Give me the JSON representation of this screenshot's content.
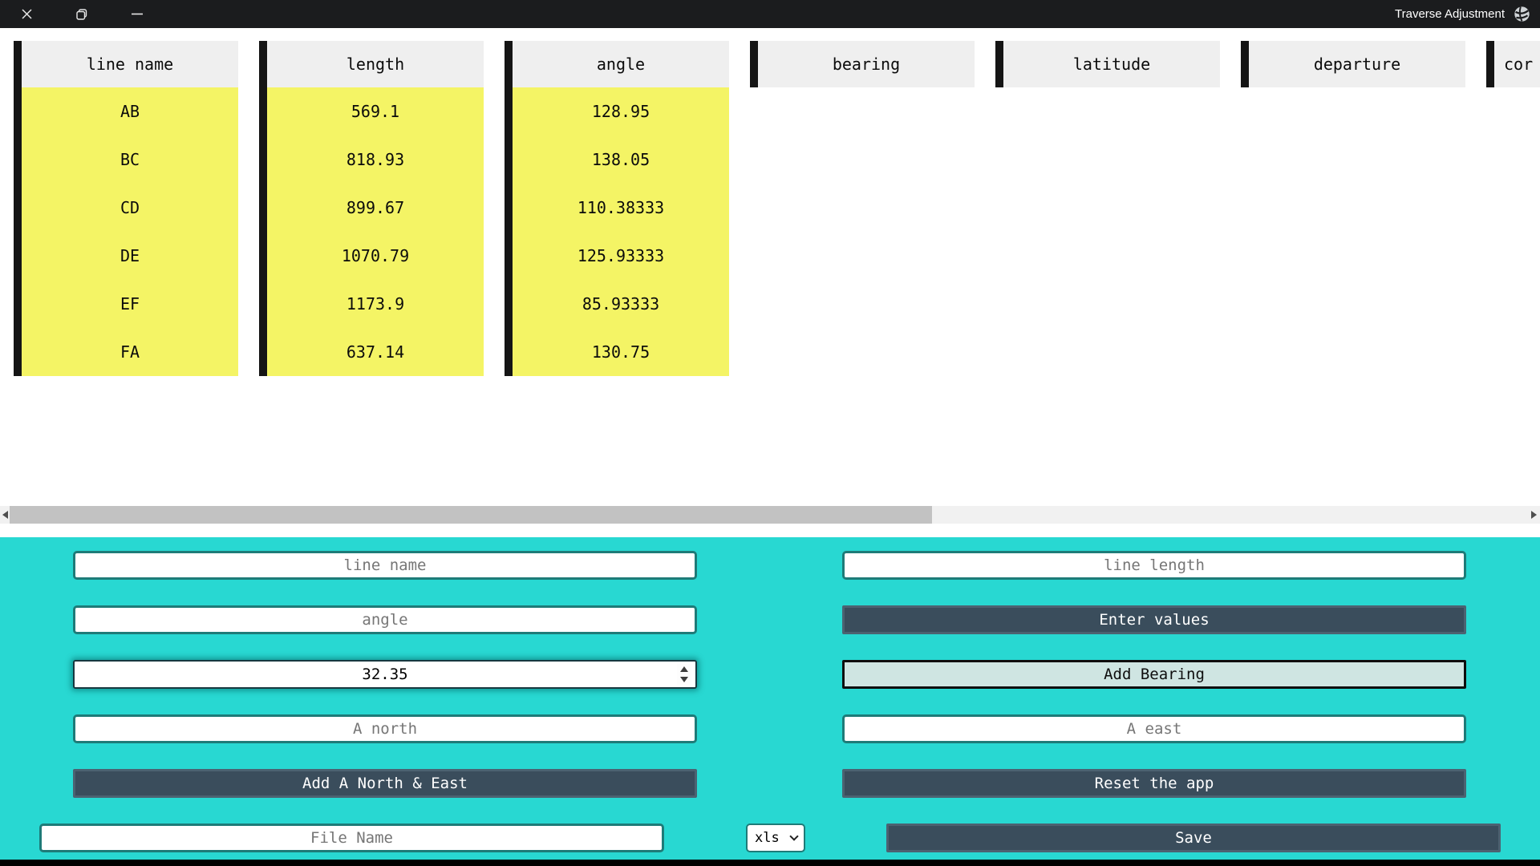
{
  "colors": {
    "titlebar": "#1b1c1e",
    "highlight_yellow": "#f4f465",
    "panel_cyan": "#28d8d2",
    "button_dark": "#3a4d5c"
  },
  "titlebar": {
    "title": "Traverse Adjustment"
  },
  "table": {
    "columns": [
      {
        "header": "line name",
        "values": [
          "AB",
          "BC",
          "CD",
          "DE",
          "EF",
          "FA"
        ]
      },
      {
        "header": "length",
        "values": [
          "569.1",
          "818.93",
          "899.67",
          "1070.79",
          "1173.9",
          "637.14"
        ]
      },
      {
        "header": "angle",
        "values": [
          "128.95",
          "138.05",
          "110.38333",
          "125.93333",
          "85.93333",
          "130.75"
        ]
      },
      {
        "header": "bearing",
        "values": []
      },
      {
        "header": "latitude",
        "values": []
      },
      {
        "header": "departure",
        "values": []
      },
      {
        "header": "cor",
        "values": [],
        "clipped": true
      }
    ]
  },
  "panel": {
    "inputs": {
      "line_name_placeholder": "line name",
      "line_length_placeholder": "line length",
      "angle_placeholder": "angle",
      "a_north_placeholder": "A north",
      "a_east_placeholder": "A east",
      "file_name_placeholder": "File Name"
    },
    "spinbox": {
      "value": "32.35"
    },
    "buttons": {
      "enter_values": "Enter values",
      "add_bearing": "Add Bearing",
      "add_a_north_east": "Add A North & East",
      "reset_app": "Reset the app",
      "save": "Save"
    },
    "select": {
      "value": "xls"
    }
  }
}
